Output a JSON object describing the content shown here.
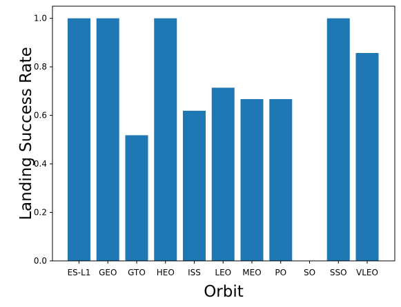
{
  "chart_data": {
    "type": "bar",
    "title": "",
    "xlabel": "Orbit",
    "ylabel": "Landing Success Rate",
    "categories": [
      "ES-L1",
      "GEO",
      "GTO",
      "HEO",
      "ISS",
      "LEO",
      "MEO",
      "PO",
      "SO",
      "SSO",
      "VLEO"
    ],
    "values": [
      1.0,
      1.0,
      0.518,
      1.0,
      0.619,
      0.714,
      0.667,
      0.667,
      0.0,
      1.0,
      0.857
    ],
    "ylim": [
      0,
      1.05
    ],
    "yticks": [
      "0.0",
      "0.2",
      "0.4",
      "0.6",
      "0.8",
      "1.0"
    ],
    "bar_color": "#1f77b4",
    "grid": false
  }
}
